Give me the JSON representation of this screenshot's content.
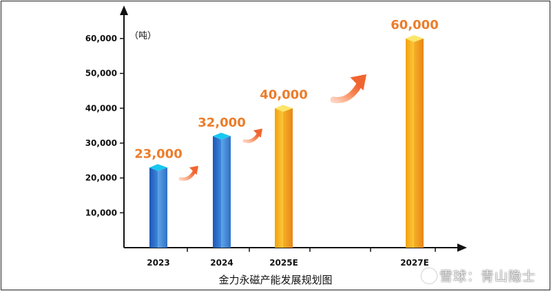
{
  "chart_data": {
    "type": "bar",
    "categories": [
      "2023",
      "2024",
      "2025E",
      "2027E"
    ],
    "values": [
      23000,
      32000,
      40000,
      60000
    ],
    "value_labels": [
      "23,000",
      "32,000",
      "40,000",
      "60,000"
    ],
    "ylim": [
      0,
      60000
    ],
    "y_ticks": [
      10000,
      20000,
      30000,
      40000,
      50000,
      60000
    ],
    "y_tick_labels": [
      "10,000",
      "20,000",
      "30,000",
      "40,000",
      "50,000",
      "60,000"
    ],
    "unit_label": "（吨）",
    "title": "金力永磁产能发展规划图",
    "grid": false,
    "colors": {
      "actual": "#2f73c9",
      "actual_top": "#18c8f0",
      "estimate": "#f7b21a",
      "estimate_top": "#fbe66a",
      "label": "#ec7c2a",
      "arrow": "#f0652f"
    }
  },
  "watermark": {
    "text": "雪球：青山隐士",
    "icon": "snowball-logo-icon"
  }
}
